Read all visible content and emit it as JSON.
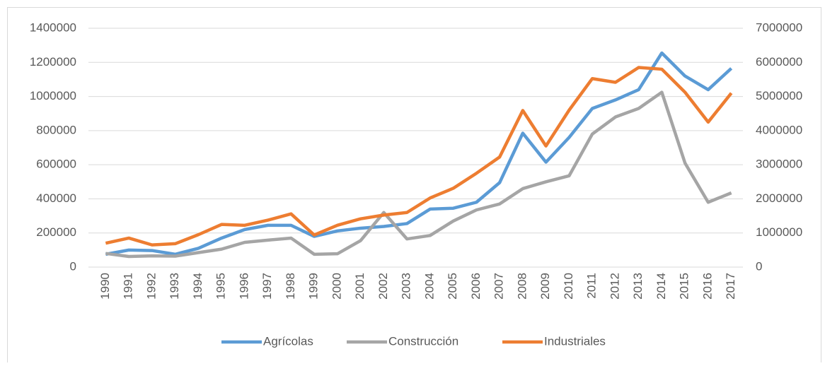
{
  "chart_data": {
    "type": "line",
    "categories": [
      "1990",
      "1991",
      "1992",
      "1993",
      "1994",
      "1995",
      "1996",
      "1997",
      "1998",
      "1999",
      "2000",
      "2001",
      "2002",
      "2003",
      "2004",
      "2005",
      "2006",
      "2007",
      "2008",
      "2009",
      "2010",
      "2011",
      "2012",
      "2013",
      "2014",
      "2015",
      "2016",
      "2017"
    ],
    "series": [
      {
        "name": "Agrícolas",
        "color": "#5b9bd5",
        "values": [
          75000,
          100000,
          97000,
          75000,
          110000,
          170000,
          220000,
          245000,
          245000,
          180000,
          212000,
          228000,
          238000,
          255000,
          340000,
          345000,
          380000,
          495000,
          785000,
          615000,
          760000,
          930000,
          980000,
          1040000,
          1255000,
          1120000,
          1040000,
          1165000
        ]
      },
      {
        "name": "Construcción",
        "color": "#a5a5a5",
        "axis": "y2",
        "values": [
          400000,
          310000,
          330000,
          320000,
          425000,
          525000,
          725000,
          790000,
          850000,
          375000,
          390000,
          775000,
          1600000,
          825000,
          925000,
          1350000,
          1675000,
          1850000,
          2300000,
          2500000,
          2675000,
          3900000,
          4400000,
          4650000,
          5125000,
          3050000,
          1900000,
          2175000
        ]
      },
      {
        "name": "Industriales",
        "color": "#ed7d31",
        "values": [
          140000,
          170000,
          130000,
          137000,
          190000,
          250000,
          245000,
          275000,
          312000,
          188000,
          245000,
          283000,
          305000,
          320000,
          405000,
          462000,
          550000,
          645000,
          918000,
          710000,
          920000,
          1105000,
          1083000,
          1170000,
          1160000,
          1025000,
          850000,
          1020000
        ]
      }
    ],
    "ylim": [
      0,
      1400000
    ],
    "yticks": [
      0,
      200000,
      400000,
      600000,
      800000,
      1000000,
      1200000,
      1400000
    ],
    "y2lim": [
      0,
      7000000
    ],
    "y2ticks": [
      0,
      1000000,
      2000000,
      3000000,
      4000000,
      5000000,
      6000000,
      7000000
    ],
    "grid": true,
    "legend": "bottom"
  }
}
